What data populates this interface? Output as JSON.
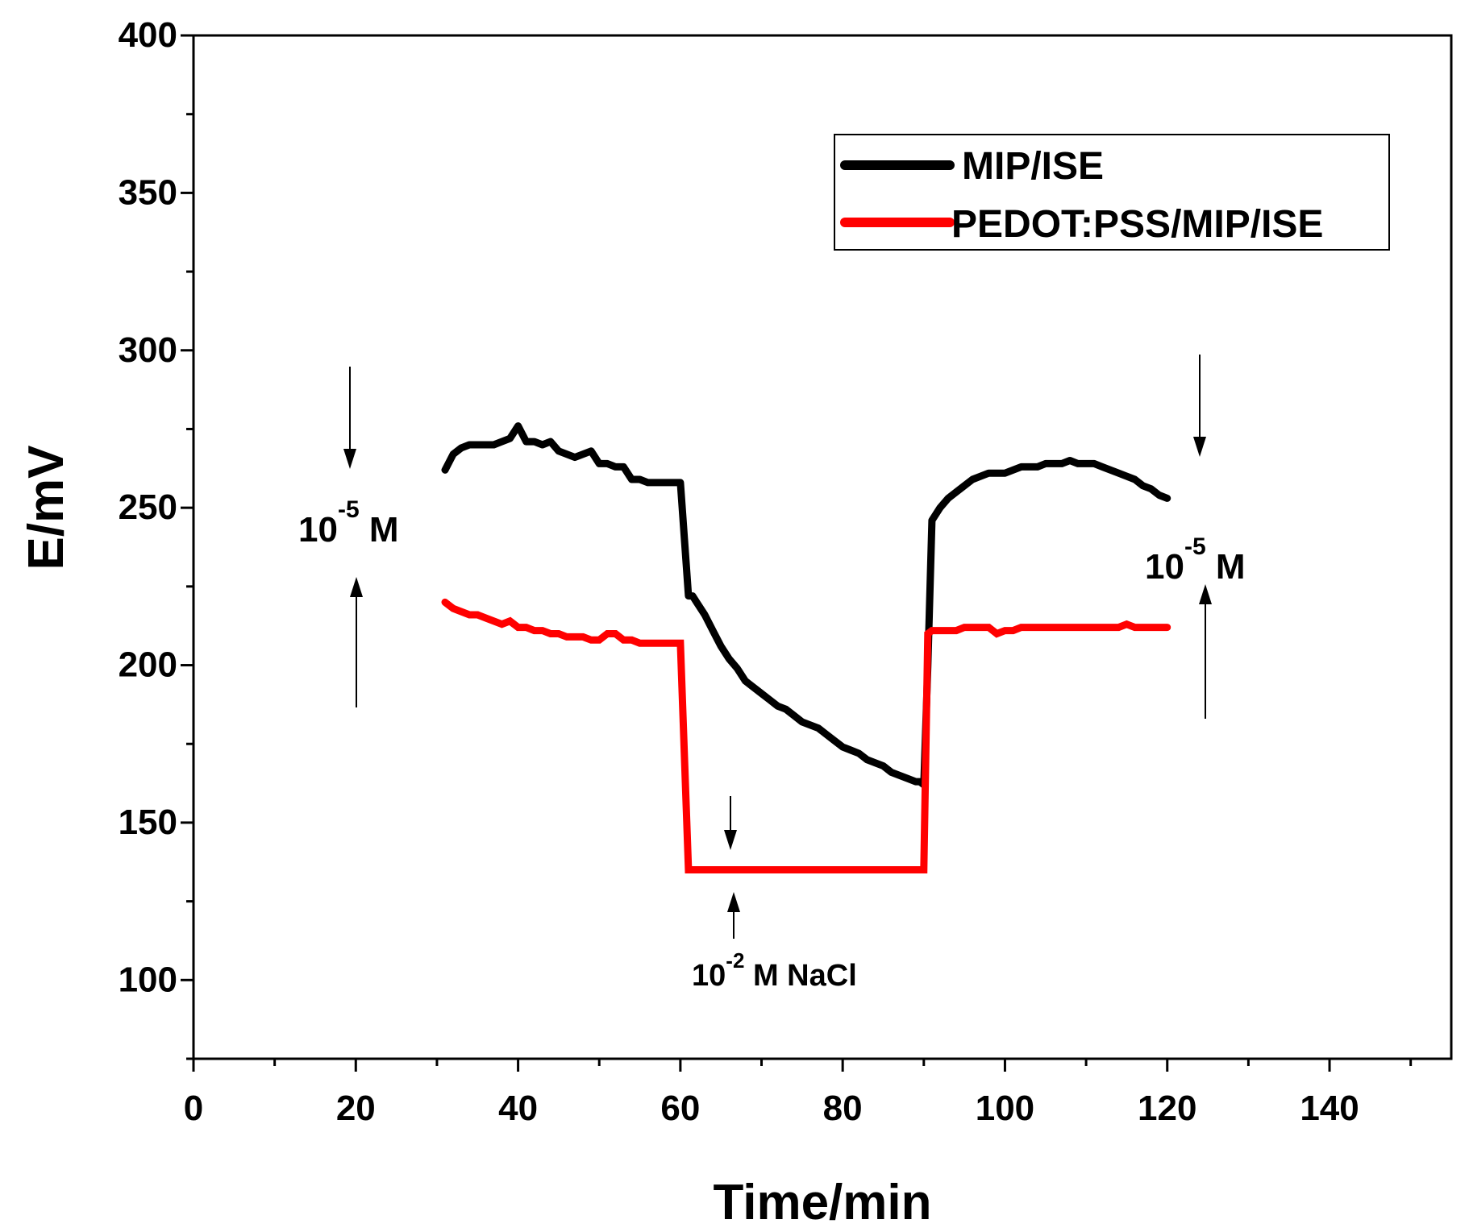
{
  "chart_data": {
    "type": "line",
    "xlabel": "Time/min",
    "ylabel": "E/mV",
    "xlim": [
      0,
      155
    ],
    "ylim": [
      75,
      400
    ],
    "x_ticks": [
      0,
      20,
      40,
      60,
      80,
      100,
      120,
      140
    ],
    "x_tick_labels": [
      "0",
      "20",
      "40",
      "60",
      "80",
      "100",
      "120",
      "140"
    ],
    "y_ticks": [
      100,
      150,
      200,
      250,
      300,
      350,
      400
    ],
    "y_tick_labels": [
      "100",
      "150",
      "200",
      "250",
      "300",
      "350",
      "400"
    ],
    "legend_position": "top-right",
    "series": [
      {
        "name": "MIP/ISE",
        "color": "#000000",
        "x": [
          31,
          32,
          33,
          34,
          35,
          36,
          37,
          38,
          39,
          40,
          41,
          42,
          43,
          44,
          45,
          46,
          47,
          48,
          49,
          50,
          51,
          52,
          53,
          54,
          55,
          56,
          57,
          58,
          59,
          60,
          60.5,
          61,
          61.5,
          62,
          63,
          64,
          65,
          66,
          67,
          68,
          69,
          70,
          71,
          72,
          73,
          74,
          75,
          76,
          77,
          78,
          79,
          80,
          81,
          82,
          83,
          84,
          85,
          86,
          87,
          88,
          89,
          89.5,
          90,
          90.5,
          91,
          92,
          93,
          94,
          95,
          96,
          97,
          98,
          99,
          100,
          101,
          102,
          103,
          104,
          105,
          106,
          107,
          108,
          109,
          110,
          111,
          112,
          113,
          114,
          115,
          116,
          117,
          118,
          119,
          120
        ],
        "y": [
          262,
          267,
          269,
          270,
          270,
          270,
          270,
          271,
          272,
          276,
          271,
          271,
          270,
          271,
          268,
          267,
          266,
          267,
          268,
          264,
          264,
          263,
          263,
          259,
          259,
          258,
          258,
          258,
          258,
          258,
          240,
          222,
          222,
          220,
          216,
          211,
          206,
          202,
          199,
          195,
          193,
          191,
          189,
          187,
          186,
          184,
          182,
          181,
          180,
          178,
          176,
          174,
          173,
          172,
          170,
          169,
          168,
          166,
          165,
          164,
          163,
          163,
          162,
          200,
          246,
          250,
          253,
          255,
          257,
          259,
          260,
          261,
          261,
          261,
          262,
          263,
          263,
          263,
          264,
          264,
          264,
          265,
          264,
          264,
          264,
          263,
          262,
          261,
          260,
          259,
          257,
          256,
          254,
          253
        ]
      },
      {
        "name": "PEDOT:PSS/MIP/ISE",
        "color": "#ff0000",
        "x": [
          31,
          32,
          33,
          34,
          35,
          36,
          37,
          38,
          39,
          40,
          41,
          42,
          43,
          44,
          45,
          46,
          47,
          48,
          49,
          50,
          51,
          52,
          53,
          54,
          55,
          56,
          57,
          58,
          59,
          60,
          61,
          61.5,
          70,
          80,
          89,
          90,
          90.5,
          91,
          92,
          93,
          94,
          95,
          96,
          97,
          98,
          99,
          100,
          101,
          102,
          103,
          104,
          105,
          106,
          107,
          108,
          109,
          110,
          111,
          112,
          113,
          114,
          115,
          116,
          117,
          118,
          119,
          120
        ],
        "y": [
          220,
          218,
          217,
          216,
          216,
          215,
          214,
          213,
          214,
          212,
          212,
          211,
          211,
          210,
          210,
          209,
          209,
          209,
          208,
          208,
          210,
          210,
          208,
          208,
          207,
          207,
          207,
          207,
          207,
          207,
          135,
          135,
          135,
          135,
          135,
          135,
          210,
          211,
          211,
          211,
          211,
          212,
          212,
          212,
          212,
          210,
          211,
          211,
          212,
          212,
          212,
          212,
          212,
          212,
          212,
          212,
          212,
          212,
          212,
          212,
          212,
          213,
          212,
          212,
          212,
          212,
          212
        ]
      }
    ],
    "annotations": [
      {
        "base": "10",
        "exp": "-5",
        "unit": "M"
      },
      {
        "base": "10",
        "exp": "-5",
        "unit": "M"
      },
      {
        "base": "10",
        "exp": "-2",
        "unit": "M NaCl"
      }
    ]
  }
}
